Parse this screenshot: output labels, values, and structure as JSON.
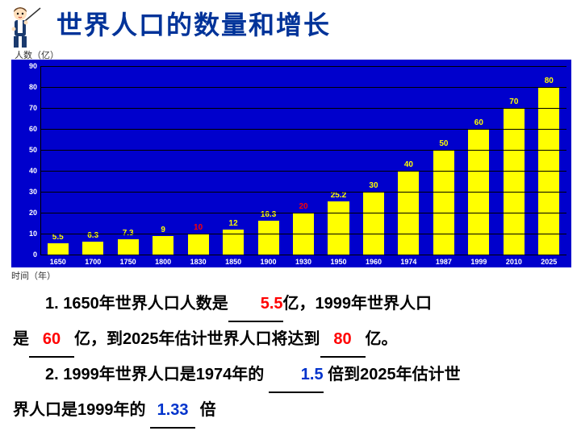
{
  "title": "世界人口的数量和增长",
  "axis": {
    "ylabel": "人数（亿）",
    "xlabel": "时间（年）"
  },
  "chart": {
    "type": "bar",
    "background_color": "#0000cc",
    "bar_color": "#ffff00",
    "grid_color": "#000000",
    "value_colors": {
      "highlight": "#ff0000",
      "normal": "#ffff00"
    },
    "ylim": [
      0,
      90
    ],
    "ytick_step": 10,
    "yticks": [
      "0",
      "10",
      "20",
      "30",
      "40",
      "50",
      "60",
      "70",
      "80",
      "90"
    ],
    "categories": [
      "1650",
      "1700",
      "1750",
      "1800",
      "1830",
      "1850",
      "1900",
      "1930",
      "1950",
      "1960",
      "1974",
      "1987",
      "1999",
      "2010",
      "2025"
    ],
    "values": [
      5.5,
      6.3,
      7.3,
      9,
      10,
      12,
      16.3,
      20,
      25.2,
      30,
      40,
      50,
      60,
      70,
      80
    ],
    "highlight_idx": [
      4,
      7
    ]
  },
  "q1": {
    "t1": "1. 1650年世界人口人数是",
    "a1": "5.5",
    "t2": "亿，1999年世界人口",
    "t3a": "是",
    "a2": "60",
    "t3b": "亿，到2025年估计世界人口将达到",
    "a3": "80",
    "t4": "亿。"
  },
  "q2": {
    "t1": "2. 1999年世界人口是1974年的",
    "a1": "1.5",
    "t2": " 倍到2025年估计世",
    "t3a": "界人口是1999年的",
    "a2": "1.33",
    "t3b": "    倍"
  }
}
